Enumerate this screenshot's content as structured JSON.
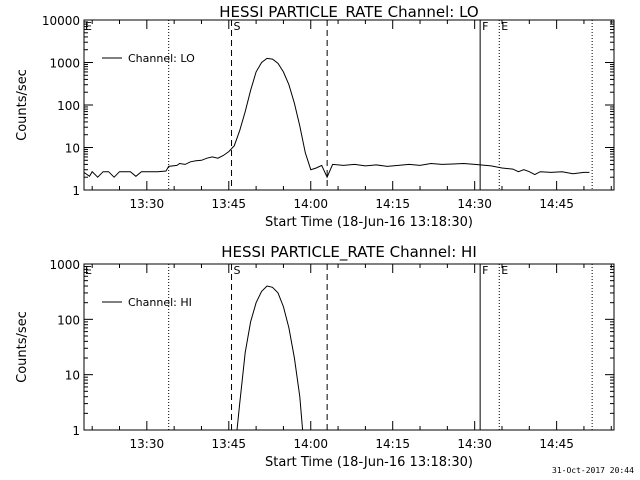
{
  "page": {
    "timestamp": "31-Oct-2017 20:44"
  },
  "chart_data": [
    {
      "type": "line",
      "title": "HESSI PARTICLE_RATE Channel: LO",
      "xlabel": "Start Time (18-Jun-16 13:18:30)",
      "ylabel": "Counts/sec",
      "yscale": "log",
      "ylim": [
        1,
        10000
      ],
      "yticks": [
        1,
        10,
        100,
        1000,
        10000
      ],
      "ytick_labels": [
        "1",
        "10",
        "100",
        "1000",
        "10000"
      ],
      "xlim": [
        "13:18:30",
        "14:55:30"
      ],
      "xticks": [
        "13:30",
        "13:45",
        "14:00",
        "14:15",
        "14:30",
        "14:45"
      ],
      "legend": {
        "label": "Channel: LO",
        "placement": "top-left"
      },
      "markers": [
        {
          "time": "13:34:00",
          "style": "dotted",
          "label": ""
        },
        {
          "time": "13:45:30",
          "style": "dashed",
          "label": "S"
        },
        {
          "time": "14:03:00",
          "style": "dashed",
          "label": ""
        },
        {
          "time": "14:31:00",
          "style": "solid",
          "label": "F"
        },
        {
          "time": "14:34:30",
          "style": "dotted",
          "label": "E"
        },
        {
          "time": "14:51:30",
          "style": "dotted",
          "label": ""
        }
      ],
      "corner_label": "E",
      "series": [
        {
          "name": "Channel: LO",
          "points": [
            [
              "13:18:30",
              2.6
            ],
            [
              "13:19:30",
              2.1
            ],
            [
              "13:20:00",
              2.7
            ],
            [
              "13:21:00",
              2.0
            ],
            [
              "13:22:00",
              2.7
            ],
            [
              "13:23:00",
              2.7
            ],
            [
              "13:24:00",
              2.0
            ],
            [
              "13:25:00",
              2.7
            ],
            [
              "13:27:00",
              2.7
            ],
            [
              "13:28:00",
              2.1
            ],
            [
              "13:29:00",
              2.7
            ],
            [
              "13:32:00",
              2.7
            ],
            [
              "13:33:30",
              2.8
            ],
            [
              "13:34:00",
              3.6
            ],
            [
              "13:35:30",
              3.8
            ],
            [
              "13:36:00",
              4.2
            ],
            [
              "13:37:00",
              4.0
            ],
            [
              "13:38:00",
              4.6
            ],
            [
              "13:39:00",
              4.9
            ],
            [
              "13:40:00",
              5.0
            ],
            [
              "13:41:00",
              5.6
            ],
            [
              "13:42:00",
              6.0
            ],
            [
              "13:43:00",
              5.6
            ],
            [
              "13:44:00",
              6.5
            ],
            [
              "13:45:00",
              8.0
            ],
            [
              "13:46:00",
              11
            ],
            [
              "13:47:00",
              25
            ],
            [
              "13:48:00",
              70
            ],
            [
              "13:49:00",
              220
            ],
            [
              "13:50:00",
              600
            ],
            [
              "13:51:00",
              1000
            ],
            [
              "13:52:00",
              1250
            ],
            [
              "13:53:00",
              1200
            ],
            [
              "13:54:00",
              950
            ],
            [
              "13:55:00",
              600
            ],
            [
              "13:56:00",
              300
            ],
            [
              "13:57:00",
              110
            ],
            [
              "13:58:00",
              32
            ],
            [
              "13:59:00",
              7.5
            ],
            [
              "14:00:00",
              3.0
            ],
            [
              "14:01:00",
              3.3
            ],
            [
              "14:02:00",
              3.8
            ],
            [
              "14:03:00",
              2.0
            ],
            [
              "14:04:00",
              4.0
            ],
            [
              "14:06:00",
              3.8
            ],
            [
              "14:08:00",
              4.0
            ],
            [
              "14:10:00",
              3.7
            ],
            [
              "14:12:00",
              3.9
            ],
            [
              "14:14:00",
              3.6
            ],
            [
              "14:16:00",
              3.8
            ],
            [
              "14:18:00",
              4.0
            ],
            [
              "14:20:00",
              3.8
            ],
            [
              "14:22:00",
              4.2
            ],
            [
              "14:24:00",
              4.0
            ],
            [
              "14:26:00",
              4.1
            ],
            [
              "14:28:00",
              4.2
            ],
            [
              "14:30:00",
              4.0
            ],
            [
              "14:31:00",
              3.9
            ],
            [
              "14:33:00",
              3.7
            ],
            [
              "14:35:00",
              3.3
            ],
            [
              "14:37:00",
              3.1
            ],
            [
              "14:38:00",
              2.7
            ],
            [
              "14:39:00",
              3.0
            ],
            [
              "14:40:00",
              2.7
            ],
            [
              "14:41:00",
              2.3
            ],
            [
              "14:42:00",
              2.7
            ],
            [
              "14:44:00",
              2.6
            ],
            [
              "14:46:00",
              2.7
            ],
            [
              "14:48:00",
              2.4
            ],
            [
              "14:50:00",
              2.6
            ],
            [
              "14:51:00",
              2.6
            ]
          ]
        }
      ]
    },
    {
      "type": "line",
      "title": "HESSI PARTICLE_RATE Channel: HI",
      "xlabel": "Start Time (18-Jun-16 13:18:30)",
      "ylabel": "Counts/sec",
      "yscale": "log",
      "ylim": [
        1,
        1000
      ],
      "yticks": [
        1,
        10,
        100,
        1000
      ],
      "ytick_labels": [
        "1",
        "10",
        "100",
        "1000"
      ],
      "xlim": [
        "13:18:30",
        "14:55:30"
      ],
      "xticks": [
        "13:30",
        "13:45",
        "14:00",
        "14:15",
        "14:30",
        "14:45"
      ],
      "legend": {
        "label": "Channel: HI",
        "placement": "top-left"
      },
      "markers": [
        {
          "time": "13:34:00",
          "style": "dotted",
          "label": ""
        },
        {
          "time": "13:45:30",
          "style": "dashed",
          "label": "S"
        },
        {
          "time": "14:03:00",
          "style": "dashed",
          "label": ""
        },
        {
          "time": "14:31:00",
          "style": "solid",
          "label": "F"
        },
        {
          "time": "14:34:30",
          "style": "dotted",
          "label": "E"
        },
        {
          "time": "14:51:30",
          "style": "dotted",
          "label": ""
        }
      ],
      "corner_label": "E",
      "series": [
        {
          "name": "Channel: HI",
          "points": [
            [
              "13:46:30",
              1.0
            ],
            [
              "13:47:00",
              3
            ],
            [
              "13:48:00",
              25
            ],
            [
              "13:49:00",
              90
            ],
            [
              "13:50:00",
              200
            ],
            [
              "13:51:00",
              320
            ],
            [
              "13:52:00",
              400
            ],
            [
              "13:53:00",
              380
            ],
            [
              "13:54:00",
              300
            ],
            [
              "13:55:00",
              170
            ],
            [
              "13:56:00",
              70
            ],
            [
              "13:57:00",
              20
            ],
            [
              "13:58:00",
              4
            ],
            [
              "13:58:30",
              1.0
            ]
          ]
        }
      ]
    }
  ]
}
